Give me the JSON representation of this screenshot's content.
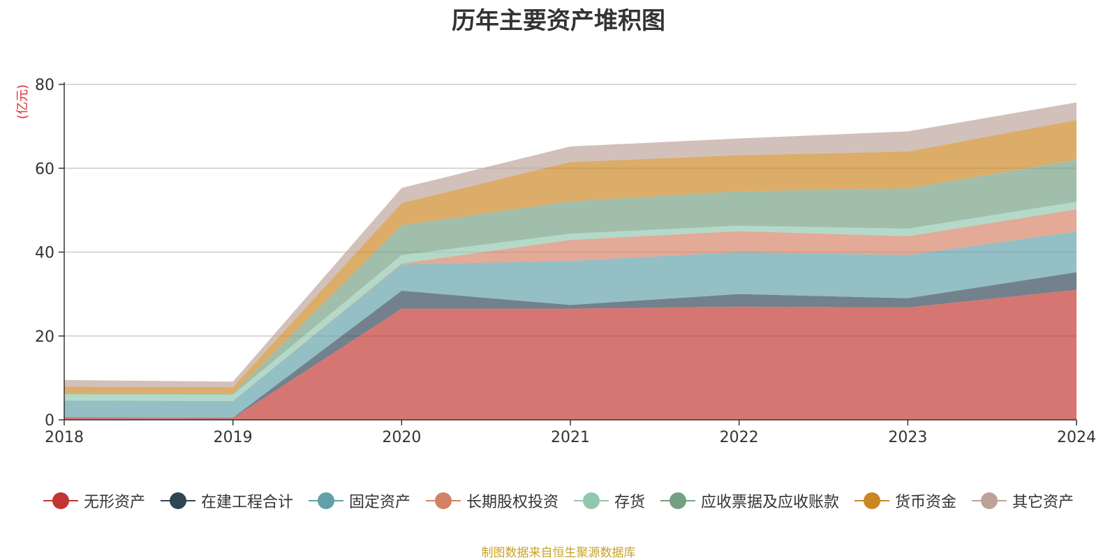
{
  "chart_data": {
    "type": "area",
    "stacked": true,
    "title": "历年主要资产堆积图",
    "ylabel": "(亿元)",
    "xlabel": "",
    "categories": [
      "2018",
      "2019",
      "2020",
      "2021",
      "2022",
      "2023",
      "2024"
    ],
    "ylim": [
      0,
      80
    ],
    "yticks": [
      0,
      20,
      40,
      60,
      80
    ],
    "grid": true,
    "legend_position": "bottom",
    "series": [
      {
        "name": "无形资产",
        "color": "#c23531",
        "values": [
          0.5,
          0.4,
          26.5,
          26.5,
          27.0,
          26.8,
          31.0
        ]
      },
      {
        "name": "在建工程合计",
        "color": "#2f4554",
        "values": [
          0.1,
          0.1,
          4.3,
          0.9,
          3.0,
          2.2,
          4.2
        ]
      },
      {
        "name": "固定资产",
        "color": "#61a0a8",
        "values": [
          4.0,
          4.0,
          6.3,
          10.5,
          10.0,
          10.3,
          9.7
        ]
      },
      {
        "name": "长期股权投资",
        "color": "#d48265",
        "values": [
          0.0,
          0.0,
          0.2,
          5.0,
          5.0,
          4.5,
          5.3
        ]
      },
      {
        "name": "存货",
        "color": "#91c7ae",
        "values": [
          1.5,
          1.5,
          2.0,
          1.5,
          1.3,
          1.8,
          1.8
        ]
      },
      {
        "name": "应收票据及应收账款",
        "color": "#749f83",
        "values": [
          0.3,
          0.3,
          7.1,
          7.7,
          8.2,
          9.6,
          10.0
        ]
      },
      {
        "name": "货币资金",
        "color": "#ca8622",
        "values": [
          1.5,
          1.5,
          5.3,
          9.4,
          8.6,
          8.8,
          9.5
        ]
      },
      {
        "name": "其它资产",
        "color": "#bda29a",
        "values": [
          1.6,
          1.3,
          3.6,
          3.7,
          4.0,
          4.8,
          4.2
        ]
      }
    ]
  },
  "source_note": "制图数据来自恒生聚源数据库"
}
